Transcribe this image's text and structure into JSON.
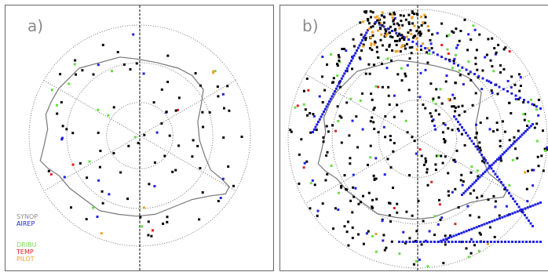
{
  "panels": [
    {
      "id": "a",
      "label": "a)"
    },
    {
      "id": "b",
      "label": "b)"
    }
  ],
  "legend": {
    "synop": {
      "label": "SYNOP",
      "color": "#8c8c8c"
    },
    "aireep": {
      "label": "AIREP",
      "color": "#2020e0"
    },
    "dribu": {
      "label": "DRIBU",
      "color": "#7cd85a"
    },
    "temp": {
      "label": "TEMP",
      "color": "#e02020"
    },
    "pilot": {
      "label": "PILOT",
      "color": "#f0a020"
    }
  },
  "colors": {
    "synop_marker": "#000000",
    "aireep": "#2020e0",
    "dribu": "#66dd44",
    "temp": "#dd2222",
    "pilot": "#f0a020",
    "coast": "#777777",
    "grid": "#555555"
  }
}
